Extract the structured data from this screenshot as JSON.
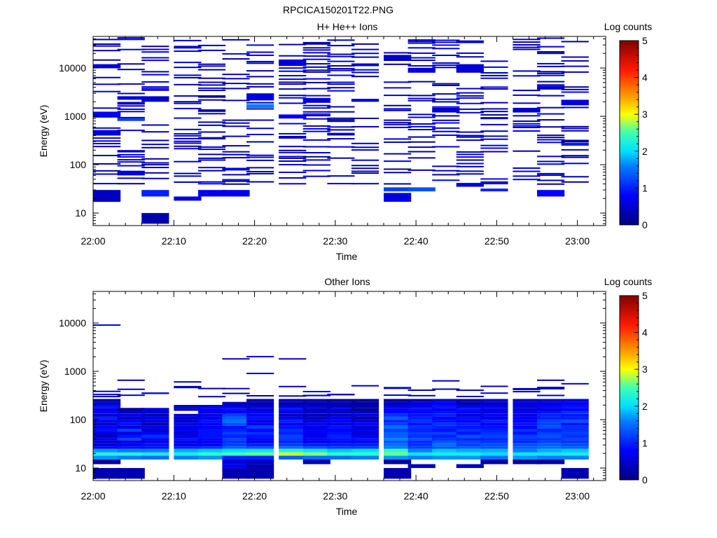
{
  "page_title": "RPCICA150201T22.PNG",
  "palette": {
    "stops": [
      [
        0,
        "#000080"
      ],
      [
        0.8,
        "#0000ff"
      ],
      [
        1.6,
        "#0080ff"
      ],
      [
        2.0,
        "#00e0ff"
      ],
      [
        2.5,
        "#40ffb0"
      ],
      [
        3.0,
        "#ffff00"
      ],
      [
        3.5,
        "#ff9900"
      ],
      [
        4.2,
        "#ff1a00"
      ],
      [
        5.0,
        "#800000"
      ]
    ]
  },
  "chart_data": [
    {
      "type": "heatmap",
      "title": "H+ He++ Ions",
      "xlabel": "Time",
      "ylabel": "Energy (eV)",
      "x_ticks": [
        "22:00",
        "22:10",
        "22:20",
        "22:30",
        "22:40",
        "22:50",
        "23:00"
      ],
      "y_ticks": [
        "10",
        "100",
        "1000",
        "10000"
      ],
      "y_scale": "log",
      "ylim": [
        5.5,
        45000
      ],
      "colorbar": {
        "label": "Log counts",
        "ticks": [
          "0",
          "1",
          "2",
          "3",
          "4",
          "5"
        ],
        "range": [
          0,
          5
        ]
      },
      "x_columns": [
        "22:00",
        "22:03",
        "22:06",
        "22:10",
        "22:13",
        "22:16",
        "22:19",
        "22:23",
        "22:26",
        "22:29",
        "22:32",
        "22:36",
        "22:39",
        "22:42",
        "22:45",
        "22:48",
        "22:52",
        "22:55",
        "22:58"
      ],
      "noise_min_energy": 40,
      "cells": [
        {
          "col": 0,
          "e_lo": 17,
          "e_hi": 30,
          "v": 0.4
        },
        {
          "col": 0,
          "e_lo": 1000,
          "e_hi": 1250,
          "v": 0.8
        },
        {
          "col": 0,
          "e_lo": 10000,
          "e_hi": 12000,
          "v": 0.6
        },
        {
          "col": 0,
          "e_lo": 420,
          "e_hi": 520,
          "v": 0.6
        },
        {
          "col": 1,
          "e_lo": 60,
          "e_hi": 75,
          "v": 0.6
        },
        {
          "col": 1,
          "e_lo": 800,
          "e_hi": 900,
          "v": 1.2
        },
        {
          "col": 1,
          "e_lo": 2200,
          "e_hi": 2600,
          "v": 0.6
        },
        {
          "col": 2,
          "e_lo": 6,
          "e_hi": 10,
          "v": 0.3
        },
        {
          "col": 2,
          "e_lo": 22,
          "e_hi": 30,
          "v": 1.0
        },
        {
          "col": 2,
          "e_lo": 2000,
          "e_hi": 2600,
          "v": 0.5
        },
        {
          "col": 3,
          "e_lo": 18,
          "e_hi": 22,
          "v": 0.6
        },
        {
          "col": 4,
          "e_lo": 22,
          "e_hi": 30,
          "v": 0.7
        },
        {
          "col": 5,
          "e_lo": 22,
          "e_hi": 30,
          "v": 0.7
        },
        {
          "col": 6,
          "e_lo": 1500,
          "e_hi": 1800,
          "v": 1.6
        },
        {
          "col": 6,
          "e_lo": 2200,
          "e_hi": 3000,
          "v": 0.6
        },
        {
          "col": 7,
          "e_lo": 11000,
          "e_hi": 15000,
          "v": 0.6
        },
        {
          "col": 7,
          "e_lo": 900,
          "e_hi": 1050,
          "v": 0.7
        },
        {
          "col": 8,
          "e_lo": 2000,
          "e_hi": 2400,
          "v": 0.6
        },
        {
          "col": 10,
          "e_lo": 2000,
          "e_hi": 2300,
          "v": 0.6
        },
        {
          "col": 11,
          "e_lo": 17,
          "e_hi": 26,
          "v": 0.6
        },
        {
          "col": 11,
          "e_lo": 28,
          "e_hi": 34,
          "v": 1.2
        },
        {
          "col": 11,
          "e_lo": 15000,
          "e_hi": 18000,
          "v": 0.5
        },
        {
          "col": 12,
          "e_lo": 28,
          "e_hi": 34,
          "v": 1.3
        },
        {
          "col": 12,
          "e_lo": 8000,
          "e_hi": 10000,
          "v": 0.6
        },
        {
          "col": 13,
          "e_lo": 1200,
          "e_hi": 1500,
          "v": 0.5
        },
        {
          "col": 14,
          "e_lo": 35,
          "e_hi": 42,
          "v": 0.6
        },
        {
          "col": 14,
          "e_lo": 8000,
          "e_hi": 12000,
          "v": 0.5
        },
        {
          "col": 15,
          "e_lo": 28,
          "e_hi": 32,
          "v": 1.0
        },
        {
          "col": 16,
          "e_lo": 1200,
          "e_hi": 1500,
          "v": 0.5
        },
        {
          "col": 17,
          "e_lo": 22,
          "e_hi": 30,
          "v": 0.8
        },
        {
          "col": 18,
          "e_lo": 1700,
          "e_hi": 2200,
          "v": 0.6
        }
      ]
    },
    {
      "type": "heatmap",
      "title": "Other Ions",
      "xlabel": "Time",
      "ylabel": "Energy (eV)",
      "x_ticks": [
        "22:00",
        "22:10",
        "22:20",
        "22:30",
        "22:40",
        "22:50",
        "23:00"
      ],
      "y_ticks": [
        "10",
        "100",
        "1000",
        "10000"
      ],
      "y_scale": "log",
      "ylim": [
        5.5,
        45000
      ],
      "colorbar": {
        "label": "Log counts",
        "ticks": [
          "0",
          "1",
          "2",
          "3",
          "4",
          "5"
        ],
        "range": [
          0,
          5
        ]
      },
      "x_columns": [
        "22:00",
        "22:03",
        "22:06",
        "22:10",
        "22:13",
        "22:16",
        "22:19",
        "22:23",
        "22:26",
        "22:29",
        "22:32",
        "22:36",
        "22:39",
        "22:42",
        "22:45",
        "22:48",
        "22:52",
        "22:55",
        "22:58"
      ],
      "energy_bins": [
        12,
        15,
        18,
        21,
        25,
        28,
        33,
        37,
        42,
        49,
        56,
        65,
        75,
        87,
        100,
        115,
        132,
        152,
        175,
        202,
        233,
        268
      ],
      "band_values": [
        [
          0.2,
          1.7,
          2.3,
          1.7,
          0.8,
          0.6,
          0.5,
          0.7,
          0.4,
          0.6,
          0.9,
          0.8,
          0.4,
          0.7,
          1.0,
          0.5,
          0.8,
          0.6,
          0.9,
          0.5,
          0.2
        ],
        [
          -1,
          1.6,
          2.3,
          1.6,
          0.9,
          0.8,
          0.5,
          1.2,
          0.9,
          0.6,
          1.2,
          0.6,
          0.9,
          0.8,
          0.4,
          0.7,
          0.4,
          0.2,
          -1,
          -1,
          -1
        ],
        [
          -1,
          1.5,
          2.2,
          1.6,
          0.9,
          0.9,
          0.6,
          0.8,
          1.1,
          0.8,
          0.5,
          0.7,
          0.3,
          0.6,
          0.7,
          0.4,
          0.5,
          0.6,
          -1,
          -1,
          -1
        ],
        [
          -1,
          1.6,
          2.2,
          1.8,
          1.0,
          0.7,
          0.6,
          0.9,
          0.7,
          0.5,
          0.8,
          0.6,
          0.7,
          0.4,
          0.6,
          0.6,
          -1,
          0.5,
          0.4,
          -1,
          -1
        ],
        [
          -1,
          1.7,
          2.4,
          1.9,
          1.1,
          0.8,
          0.7,
          0.8,
          0.9,
          0.9,
          0.9,
          0.8,
          0.8,
          0.9,
          0.7,
          0.7,
          0.6,
          0.8,
          0.6,
          -1,
          -1
        ],
        [
          0.6,
          1.0,
          2.5,
          2.0,
          1.4,
          1.2,
          1.1,
          1.2,
          1.0,
          1.2,
          1.0,
          0.9,
          1.3,
          1.5,
          1.4,
          1.2,
          0.8,
          0.9,
          0.5,
          0.4,
          -1
        ],
        [
          0.5,
          1.0,
          2.6,
          2.1,
          1.3,
          1.0,
          0.6,
          0.8,
          0.9,
          1.1,
          0.8,
          1.2,
          0.7,
          0.6,
          0.9,
          0.8,
          0.7,
          0.6,
          0.5,
          0.3,
          0.3
        ],
        [
          -1,
          1.4,
          2.9,
          2.3,
          1.5,
          1.2,
          1.0,
          1.1,
          1.2,
          1.0,
          1.1,
          0.9,
          0.8,
          1.0,
          0.7,
          0.5,
          0.6,
          0.9,
          0.5,
          0.3,
          0.4
        ],
        [
          0.3,
          1.5,
          2.7,
          2.1,
          1.3,
          1.0,
          0.6,
          0.8,
          0.7,
          0.7,
          0.8,
          0.6,
          0.8,
          0.5,
          0.5,
          0.3,
          0.5,
          0.4,
          0.5,
          0.3,
          0.3
        ],
        [
          -1,
          1.5,
          2.4,
          1.9,
          1.2,
          1.0,
          0.8,
          0.9,
          1.0,
          0.9,
          0.8,
          0.9,
          0.6,
          0.8,
          0.7,
          0.5,
          0.4,
          0.6,
          0.3,
          0.4,
          0.2
        ],
        [
          -1,
          1.6,
          2.4,
          2.0,
          1.2,
          1.0,
          0.7,
          0.9,
          0.7,
          0.5,
          0.7,
          0.5,
          0.8,
          0.5,
          0.3,
          0.6,
          0.4,
          0.2,
          0.3,
          0.2,
          0.2
        ],
        [
          0.2,
          1.7,
          2.6,
          2.4,
          1.6,
          1.5,
          1.3,
          1.6,
          1.4,
          1.4,
          1.2,
          1.5,
          1.2,
          1.0,
          1.4,
          1.1,
          0.8,
          0.8,
          0.6,
          0.4,
          0.2
        ],
        [
          -1,
          1.6,
          2.1,
          1.6,
          1.2,
          1.1,
          1.0,
          1.3,
          1.1,
          1.2,
          1.0,
          1.1,
          0.9,
          1.1,
          1.0,
          0.9,
          0.8,
          0.9,
          0.7,
          0.6,
          0.3
        ],
        [
          -1,
          1.7,
          2.2,
          1.9,
          1.3,
          1.5,
          1.3,
          1.1,
          1.0,
          1.2,
          0.9,
          1.0,
          1.1,
          0.9,
          0.8,
          1.0,
          0.9,
          0.7,
          0.9,
          0.8,
          0.5
        ],
        [
          -1,
          1.7,
          2.2,
          1.8,
          1.4,
          1.2,
          1.2,
          1.0,
          1.3,
          0.9,
          1.1,
          0.9,
          1.0,
          0.8,
          0.9,
          0.6,
          0.8,
          0.9,
          0.6,
          0.3,
          0.3
        ],
        [
          0.2,
          1.5,
          2.0,
          1.8,
          1.3,
          1.3,
          1.1,
          1.0,
          1.2,
          1.1,
          1.0,
          0.9,
          0.8,
          1.0,
          0.6,
          0.8,
          0.5,
          0.7,
          0.7,
          0.4,
          0.5
        ],
        [
          0.2,
          1.7,
          2.1,
          1.6,
          1.4,
          1.3,
          1.0,
          1.1,
          1.2,
          0.9,
          1.1,
          0.8,
          0.9,
          0.8,
          0.8,
          0.7,
          0.7,
          0.5,
          0.6,
          0.6,
          0.4
        ],
        [
          0.2,
          1.6,
          2.1,
          1.8,
          1.5,
          1.4,
          1.2,
          1.1,
          1.3,
          1.2,
          1.0,
          1.3,
          1.2,
          1.2,
          1.0,
          1.0,
          0.9,
          0.6,
          0.8,
          0.6,
          0.5
        ],
        [
          -1,
          1.6,
          2.2,
          1.9,
          1.4,
          1.3,
          1.1,
          1.2,
          1.1,
          1.2,
          1.1,
          1.1,
          0.9,
          1.3,
          1.0,
          0.9,
          1.1,
          0.8,
          0.9,
          0.8,
          0.6
        ]
      ],
      "deep_cells": [
        {
          "col": 0,
          "e_lo": 6,
          "e_hi": 10,
          "v": 0.3
        },
        {
          "col": 1,
          "e_lo": 6,
          "e_hi": 10,
          "v": 0.3
        },
        {
          "col": 5,
          "e_lo": 6,
          "e_hi": 10,
          "v": 0.3
        },
        {
          "col": 5,
          "e_lo": 10,
          "e_hi": 12,
          "v": 0.7
        },
        {
          "col": 6,
          "e_lo": 6,
          "e_hi": 12,
          "v": 0.3
        },
        {
          "col": 11,
          "e_lo": 6,
          "e_hi": 10,
          "v": 0.3
        },
        {
          "col": 12,
          "e_lo": 10,
          "e_hi": 12,
          "v": 0.4
        },
        {
          "col": 14,
          "e_lo": 10,
          "e_hi": 12,
          "v": 0.4
        },
        {
          "col": 18,
          "e_lo": 6,
          "e_hi": 10,
          "v": 0.3
        }
      ],
      "lines": [
        {
          "col": 0,
          "e": 9000,
          "v": 0.5
        },
        {
          "col": 5,
          "e": 1800,
          "v": 0.4
        },
        {
          "col": 6,
          "e": 2000,
          "v": 0.8
        },
        {
          "col": 7,
          "e": 1800,
          "v": 0.4
        },
        {
          "col": 0,
          "e": 330,
          "v": 0.5
        },
        {
          "col": 1,
          "e": 650,
          "v": 0.4
        },
        {
          "col": 3,
          "e": 600,
          "v": 0.4
        },
        {
          "col": 6,
          "e": 900,
          "v": 0.4
        },
        {
          "col": 10,
          "e": 500,
          "v": 0.6
        },
        {
          "col": 13,
          "e": 630,
          "v": 0.4
        },
        {
          "col": 16,
          "e": 420,
          "v": 0.4
        },
        {
          "col": 17,
          "e": 650,
          "v": 0.4
        },
        {
          "col": 18,
          "e": 550,
          "v": 0.5
        }
      ]
    }
  ]
}
